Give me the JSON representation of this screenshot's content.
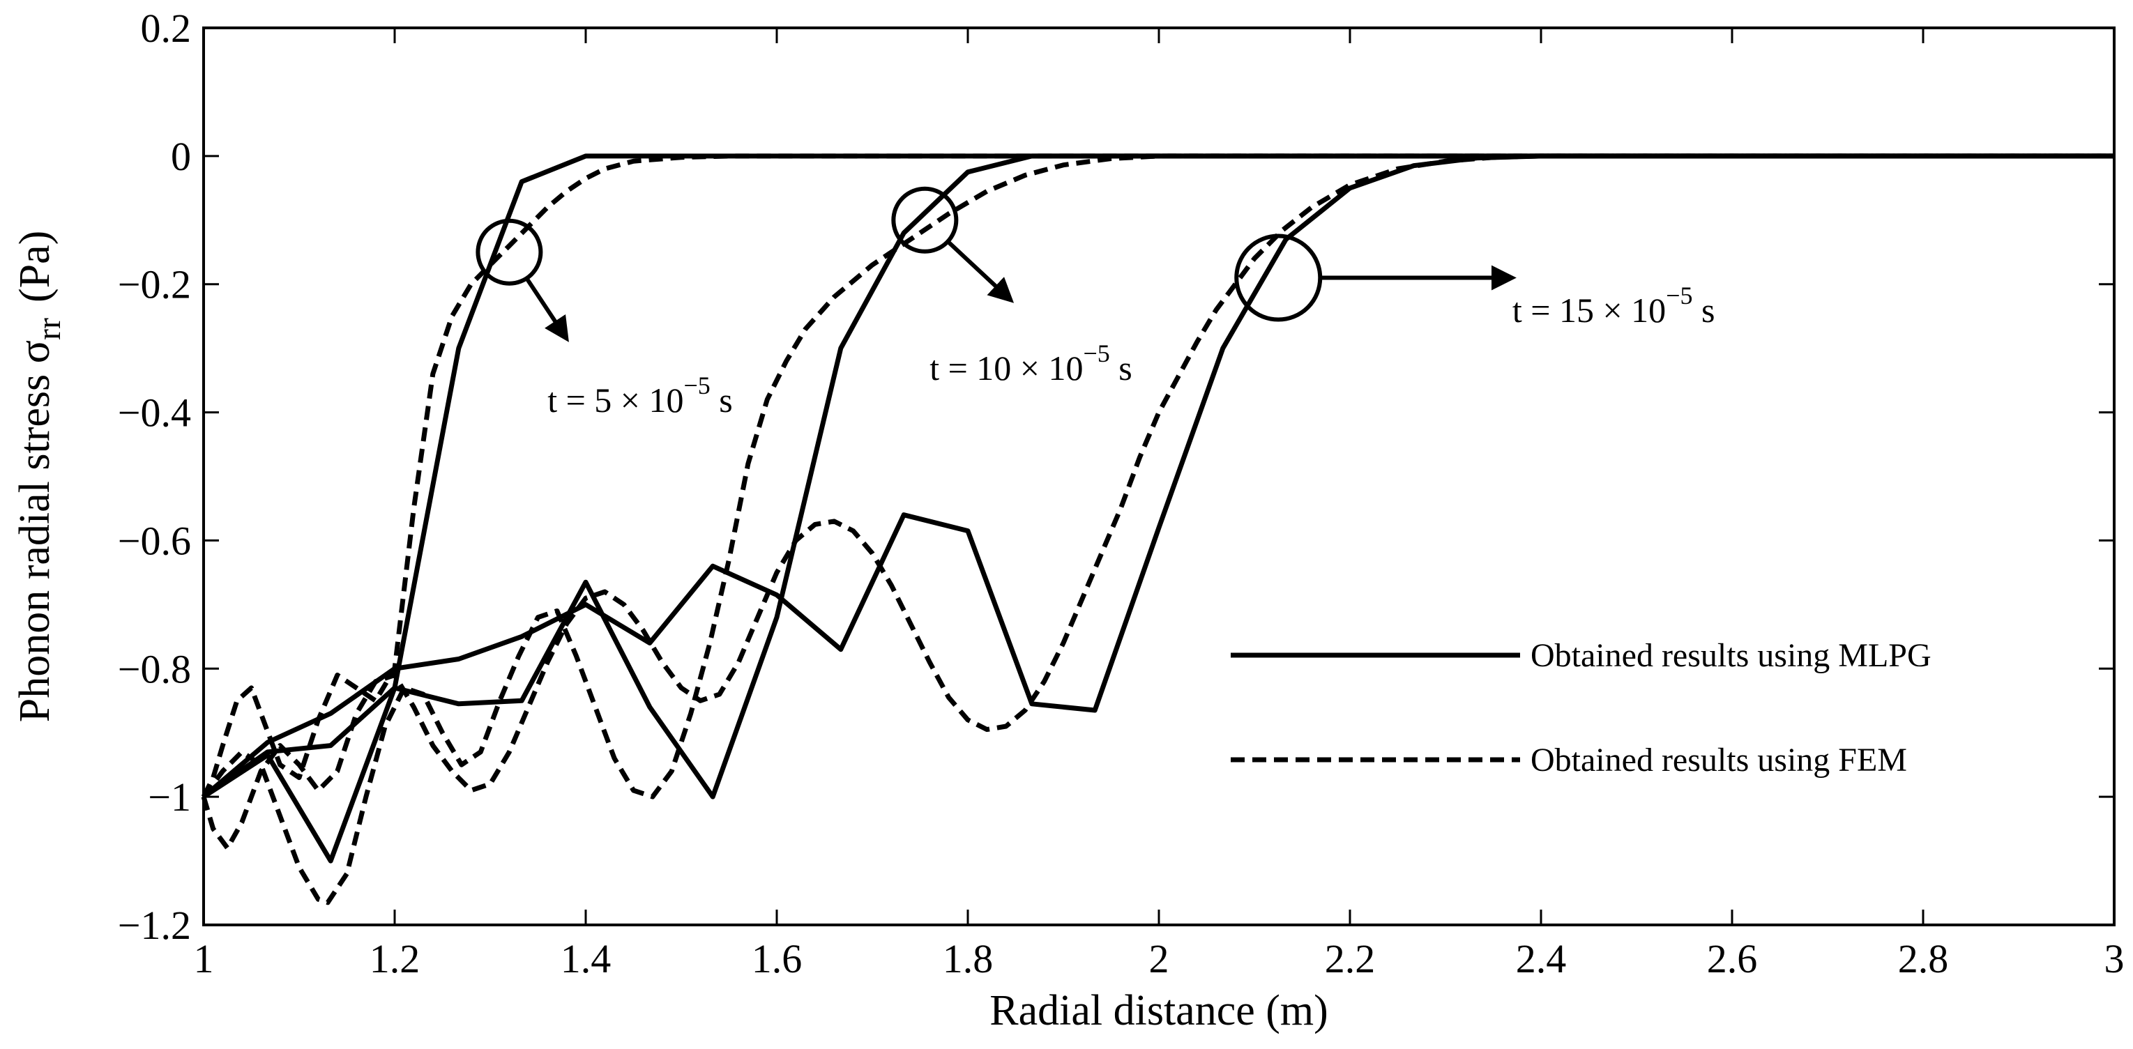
{
  "chart_data": {
    "type": "line",
    "xlabel": "Radial distance (m)",
    "ylabel": "Phonon radial stress σ",
    "ylabel_sub": "rr",
    "ylabel_unit": "(Pa)",
    "xlim": [
      1,
      3
    ],
    "ylim": [
      -1.2,
      0.2
    ],
    "xticks": [
      1,
      1.2,
      1.4,
      1.6,
      1.8,
      2,
      2.2,
      2.4,
      2.6,
      2.8,
      3
    ],
    "xtick_labels": [
      "1",
      "1.2",
      "1.4",
      "1.6",
      "1.8",
      "2",
      "2.2",
      "2.4",
      "2.6",
      "2.8",
      "3"
    ],
    "yticks": [
      0.2,
      0,
      -0.2,
      -0.4,
      -0.6,
      -0.8,
      -1,
      -1.2
    ],
    "ytick_labels": [
      "0.2",
      "0",
      "−0.2",
      "−0.4",
      "−0.6",
      "−0.8",
      "−1",
      "−1.2"
    ],
    "grid": false,
    "legend": {
      "placement": "lower-right",
      "entries": [
        {
          "label": "Obtained results using MLPG",
          "style": "solid"
        },
        {
          "label": "Obtained results using FEM",
          "style": "dashed"
        }
      ]
    },
    "annotations": [
      {
        "prefix": "t = 5 × 10",
        "exp": "−5",
        "suffix": " s",
        "circle": [
          1.32,
          -0.15
        ],
        "arrow_to": [
          1.38,
          -0.285
        ],
        "text_at": [
          1.36,
          -0.36
        ]
      },
      {
        "prefix": "t = 10 × 10",
        "exp": "−5",
        "suffix": " s",
        "circle": [
          1.755,
          -0.1
        ],
        "arrow_to": [
          1.845,
          -0.225
        ],
        "text_at": [
          1.76,
          -0.31
        ]
      },
      {
        "prefix": "t = 15 × 10",
        "exp": "−5",
        "suffix": " s",
        "circle": [
          2.125,
          -0.19
        ],
        "arrow_to": [
          2.37,
          -0.19
        ],
        "text_at": [
          2.37,
          -0.22
        ]
      }
    ],
    "series": [
      {
        "label": "MLPG t = 5 × 10^-5 s",
        "style": "solid",
        "x": [
          1,
          1.067,
          1.133,
          1.2,
          1.267,
          1.333,
          1.4,
          1.467,
          3
        ],
        "y": [
          -1.0,
          -0.93,
          -0.92,
          -0.83,
          -0.3,
          -0.04,
          0,
          0,
          0
        ]
      },
      {
        "label": "FEM t = 5 × 10^-5 s",
        "style": "dashed",
        "x": [
          1,
          1.01,
          1.02,
          1.035,
          1.05,
          1.065,
          1.08,
          1.1,
          1.12,
          1.14,
          1.16,
          1.18,
          1.2,
          1.22,
          1.24,
          1.26,
          1.28,
          1.3,
          1.32,
          1.34,
          1.36,
          1.38,
          1.4,
          1.42,
          1.45,
          1.5,
          1.55,
          3
        ],
        "y": [
          -1.0,
          -0.97,
          -0.92,
          -0.85,
          -0.83,
          -0.89,
          -0.95,
          -0.97,
          -0.88,
          -0.81,
          -0.83,
          -0.85,
          -0.8,
          -0.55,
          -0.34,
          -0.25,
          -0.2,
          -0.17,
          -0.14,
          -0.11,
          -0.08,
          -0.055,
          -0.035,
          -0.02,
          -0.008,
          -0.002,
          0,
          0
        ]
      },
      {
        "label": "MLPG t = 10 × 10^-5 s",
        "style": "solid",
        "x": [
          1,
          1.067,
          1.133,
          1.2,
          1.267,
          1.333,
          1.4,
          1.467,
          1.533,
          1.6,
          1.667,
          1.733,
          1.8,
          1.867,
          3
        ],
        "y": [
          -1.0,
          -0.935,
          -1.1,
          -0.83,
          -0.855,
          -0.85,
          -0.665,
          -0.86,
          -1.0,
          -0.72,
          -0.3,
          -0.12,
          -0.025,
          0,
          0
        ]
      },
      {
        "label": "FEM t = 10 × 10^-5 s",
        "style": "dashed",
        "x": [
          1,
          1.02,
          1.04,
          1.06,
          1.08,
          1.1,
          1.12,
          1.13,
          1.15,
          1.17,
          1.19,
          1.21,
          1.23,
          1.25,
          1.27,
          1.29,
          1.31,
          1.33,
          1.35,
          1.37,
          1.39,
          1.41,
          1.43,
          1.45,
          1.47,
          1.49,
          1.51,
          1.53,
          1.55,
          1.57,
          1.59,
          1.61,
          1.63,
          1.66,
          1.7,
          1.74,
          1.78,
          1.82,
          1.86,
          1.9,
          1.95,
          2.0,
          3
        ],
        "y": [
          -1.0,
          -0.96,
          -0.93,
          -0.95,
          -1.03,
          -1.11,
          -1.16,
          -1.165,
          -1.12,
          -1.0,
          -0.89,
          -0.83,
          -0.84,
          -0.9,
          -0.95,
          -0.93,
          -0.85,
          -0.78,
          -0.72,
          -0.71,
          -0.78,
          -0.86,
          -0.94,
          -0.99,
          -1.0,
          -0.96,
          -0.87,
          -0.76,
          -0.63,
          -0.48,
          -0.38,
          -0.32,
          -0.27,
          -0.22,
          -0.17,
          -0.13,
          -0.09,
          -0.055,
          -0.03,
          -0.014,
          -0.004,
          0,
          0
        ]
      },
      {
        "label": "MLPG t = 15 × 10^-5 s",
        "style": "solid",
        "x": [
          1,
          1.067,
          1.133,
          1.2,
          1.267,
          1.333,
          1.4,
          1.467,
          1.533,
          1.6,
          1.667,
          1.733,
          1.8,
          1.867,
          1.933,
          2.0,
          2.067,
          2.133,
          2.2,
          2.267,
          2.333,
          2.4,
          3
        ],
        "y": [
          -1.0,
          -0.915,
          -0.87,
          -0.8,
          -0.785,
          -0.75,
          -0.7,
          -0.76,
          -0.64,
          -0.685,
          -0.77,
          -0.56,
          -0.585,
          -0.855,
          -0.865,
          -0.58,
          -0.3,
          -0.13,
          -0.05,
          -0.015,
          -0.003,
          0,
          0
        ]
      },
      {
        "label": "FEM t = 15 × 10^-5 s",
        "style": "dashed",
        "x": [
          1,
          1.01,
          1.025,
          1.04,
          1.06,
          1.08,
          1.1,
          1.12,
          1.14,
          1.16,
          1.18,
          1.2,
          1.22,
          1.24,
          1.26,
          1.28,
          1.3,
          1.32,
          1.34,
          1.36,
          1.38,
          1.4,
          1.42,
          1.44,
          1.46,
          1.48,
          1.5,
          1.52,
          1.54,
          1.56,
          1.58,
          1.6,
          1.62,
          1.64,
          1.66,
          1.68,
          1.7,
          1.72,
          1.74,
          1.76,
          1.78,
          1.8,
          1.82,
          1.84,
          1.86,
          1.88,
          1.9,
          1.92,
          1.94,
          1.96,
          1.98,
          2.0,
          2.02,
          2.04,
          2.06,
          2.08,
          2.1,
          2.13,
          2.16,
          2.2,
          2.25,
          2.3,
          2.35,
          2.4,
          3
        ],
        "y": [
          -1.0,
          -1.05,
          -1.08,
          -1.04,
          -0.96,
          -0.92,
          -0.95,
          -0.99,
          -0.96,
          -0.87,
          -0.82,
          -0.81,
          -0.86,
          -0.92,
          -0.96,
          -0.99,
          -0.98,
          -0.93,
          -0.86,
          -0.79,
          -0.73,
          -0.69,
          -0.68,
          -0.7,
          -0.74,
          -0.79,
          -0.83,
          -0.85,
          -0.84,
          -0.79,
          -0.72,
          -0.65,
          -0.6,
          -0.575,
          -0.57,
          -0.585,
          -0.62,
          -0.67,
          -0.73,
          -0.79,
          -0.845,
          -0.88,
          -0.895,
          -0.89,
          -0.865,
          -0.82,
          -0.76,
          -0.69,
          -0.62,
          -0.55,
          -0.47,
          -0.4,
          -0.345,
          -0.29,
          -0.24,
          -0.2,
          -0.16,
          -0.115,
          -0.08,
          -0.045,
          -0.02,
          -0.008,
          -0.002,
          0,
          0
        ]
      }
    ]
  }
}
